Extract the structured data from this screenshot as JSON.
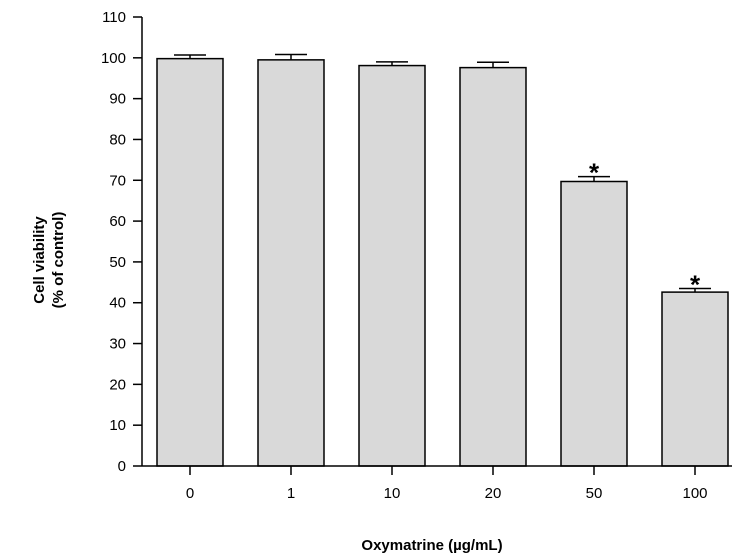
{
  "chart_data": {
    "type": "bar",
    "title": "",
    "xlabel": "Oxymatrine (µg/mL)",
    "ylabel_lines": [
      "Cell viability",
      "(% of control)"
    ],
    "categories": [
      "0",
      "1",
      "10",
      "20",
      "50",
      "100"
    ],
    "values": [
      99.8,
      99.5,
      98.1,
      97.6,
      69.7,
      42.6
    ],
    "errors": [
      0.9,
      1.3,
      0.9,
      1.3,
      1.2,
      0.9
    ],
    "annotations": [
      "",
      "",
      "",
      "",
      "*",
      "*"
    ],
    "ylim": [
      0,
      110
    ],
    "yticks": [
      0,
      10,
      20,
      30,
      40,
      50,
      60,
      70,
      80,
      90,
      100,
      110
    ],
    "grid": false,
    "legend": "none",
    "colors": {
      "bar_fill": "#d9d9d9",
      "bar_edge": "#000000"
    }
  }
}
